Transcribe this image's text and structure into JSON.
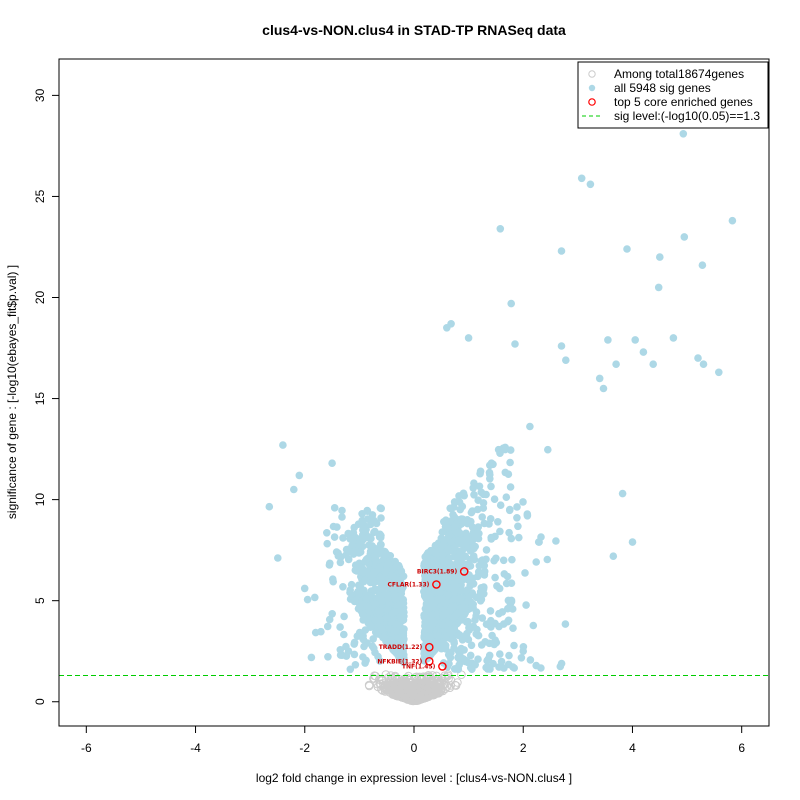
{
  "chart_data": {
    "type": "scatter",
    "title": "clus4-vs-NON.clus4 in STAD-TP RNASeq data",
    "xlabel": "log2 fold change in expression level : [clus4-vs-NON.clus4 ]",
    "ylabel": "significance of gene : [-log10(ebayes_fit$p.val) ]",
    "xlim": [
      -6.5,
      6.5
    ],
    "ylim": [
      -1.2,
      31.8
    ],
    "x_ticks": [
      -6,
      -4,
      -2,
      0,
      2,
      4,
      6
    ],
    "y_ticks": [
      0,
      5,
      10,
      15,
      20,
      25,
      30
    ],
    "sig_level": 1.3,
    "colors": {
      "all_genes": "#cccccc",
      "sig_genes": "#add8e6",
      "core_genes": "#ff0000",
      "sig_line": "#00cc00",
      "gene_label": "#cc0000"
    },
    "legend": {
      "position": "top-right",
      "entries": [
        "Among total18674genes",
        "all 5948 sig genes",
        "top 5 core enriched genes",
        "sig level:(-log10(0.05)==1.3"
      ]
    },
    "core_genes": [
      {
        "label": "BIRC3(1.89)",
        "x": 0.92,
        "y": 6.45
      },
      {
        "label": "CFLAR(1.33)",
        "x": 0.41,
        "y": 5.8
      },
      {
        "label": "TRADD(1.22)",
        "x": 0.28,
        "y": 2.7
      },
      {
        "label": "NFKBIE(1.32)",
        "x": 0.28,
        "y": 2.0
      },
      {
        "label": "TNF(1.45)",
        "x": 0.52,
        "y": 1.75
      }
    ],
    "highlighted_sig_points": [
      [
        4.93,
        28.1
      ],
      [
        3.07,
        25.9
      ],
      [
        3.23,
        25.6
      ],
      [
        5.83,
        23.8
      ],
      [
        1.58,
        23.4
      ],
      [
        2.7,
        22.3
      ],
      [
        3.9,
        22.4
      ],
      [
        4.95,
        23.0
      ],
      [
        4.5,
        22.0
      ],
      [
        5.28,
        21.6
      ],
      [
        4.48,
        20.5
      ],
      [
        1.78,
        19.7
      ],
      [
        0.68,
        18.7
      ],
      [
        0.6,
        18.5
      ],
      [
        3.55,
        17.9
      ],
      [
        4.05,
        17.9
      ],
      [
        4.75,
        18.0
      ],
      [
        1.0,
        18.0
      ],
      [
        2.7,
        17.6
      ],
      [
        1.85,
        17.7
      ],
      [
        4.2,
        17.3
      ],
      [
        3.7,
        16.7
      ],
      [
        5.2,
        17.0
      ],
      [
        5.3,
        16.7
      ],
      [
        5.58,
        16.3
      ],
      [
        2.78,
        16.9
      ],
      [
        3.4,
        16.0
      ],
      [
        3.47,
        15.5
      ],
      [
        4.38,
        16.7
      ],
      [
        -2.4,
        12.7
      ],
      [
        -2.1,
        11.2
      ],
      [
        -1.5,
        11.8
      ],
      [
        -2.65,
        9.65
      ],
      [
        -2.2,
        10.5
      ],
      [
        3.82,
        10.3
      ],
      [
        4.0,
        7.9
      ],
      [
        3.65,
        7.2
      ],
      [
        2.0,
        2.5
      ]
    ]
  }
}
